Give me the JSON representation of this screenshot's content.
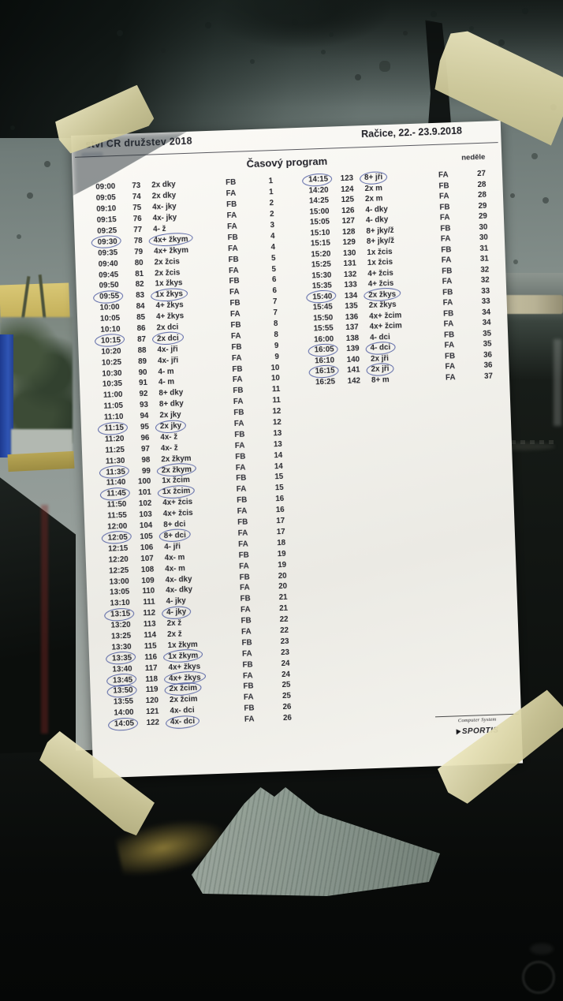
{
  "document": {
    "event_title_visible": "ství ČR družstev 2018",
    "location_date": "Račice,  22.- 23.9.2018",
    "program_title": "Časový program",
    "day_label": "neděle",
    "footer": {
      "line1": "Computer System",
      "line2": "SPORTIS"
    },
    "schedule_left": [
      {
        "time": "09:00",
        "race": "73",
        "boat": "2x dky",
        "heat": "FB",
        "block": "1"
      },
      {
        "time": "09:05",
        "race": "74",
        "boat": "2x dky",
        "heat": "FA",
        "block": "1"
      },
      {
        "time": "09:10",
        "race": "75",
        "boat": "4x- jky",
        "heat": "FB",
        "block": "2"
      },
      {
        "time": "09:15",
        "race": "76",
        "boat": "4x- jky",
        "heat": "FA",
        "block": "2"
      },
      {
        "time": "09:25",
        "race": "77",
        "boat": "4- ž",
        "heat": "FA",
        "block": "3"
      },
      {
        "time": "09:30",
        "race": "78",
        "boat": "4x+ žkym",
        "heat": "FB",
        "block": "4",
        "tc": 1,
        "bc": 1
      },
      {
        "time": "09:35",
        "race": "79",
        "boat": "4x+ žkym",
        "heat": "FA",
        "block": "4"
      },
      {
        "time": "09:40",
        "race": "80",
        "boat": "2x žcis",
        "heat": "FB",
        "block": "5"
      },
      {
        "time": "09:45",
        "race": "81",
        "boat": "2x žcis",
        "heat": "FA",
        "block": "5"
      },
      {
        "time": "09:50",
        "race": "82",
        "boat": "1x žkys",
        "heat": "FB",
        "block": "6"
      },
      {
        "time": "09:55",
        "race": "83",
        "boat": "1x žkys",
        "heat": "FA",
        "block": "6",
        "tc": 1,
        "bc": 1
      },
      {
        "time": "10:00",
        "race": "84",
        "boat": "4+ žkys",
        "heat": "FB",
        "block": "7"
      },
      {
        "time": "10:05",
        "race": "85",
        "boat": "4+ žkys",
        "heat": "FA",
        "block": "7"
      },
      {
        "time": "10:10",
        "race": "86",
        "boat": "2x dci",
        "heat": "FB",
        "block": "8"
      },
      {
        "time": "10:15",
        "race": "87",
        "boat": "2x dci",
        "heat": "FA",
        "block": "8",
        "tc": 1,
        "bc": 1
      },
      {
        "time": "10:20",
        "race": "88",
        "boat": "4x- jři",
        "heat": "FB",
        "block": "9"
      },
      {
        "time": "10:25",
        "race": "89",
        "boat": "4x- jři",
        "heat": "FA",
        "block": "9"
      },
      {
        "time": "10:30",
        "race": "90",
        "boat": "4- m",
        "heat": "FB",
        "block": "10"
      },
      {
        "time": "10:35",
        "race": "91",
        "boat": "4- m",
        "heat": "FA",
        "block": "10"
      },
      {
        "time": "11:00",
        "race": "92",
        "boat": "8+ dky",
        "heat": "FB",
        "block": "11"
      },
      {
        "time": "11:05",
        "race": "93",
        "boat": "8+ dky",
        "heat": "FA",
        "block": "11"
      },
      {
        "time": "11:10",
        "race": "94",
        "boat": "2x jky",
        "heat": "FB",
        "block": "12"
      },
      {
        "time": "11:15",
        "race": "95",
        "boat": "2x jky",
        "heat": "FA",
        "block": "12",
        "tc": 1,
        "bc": 1
      },
      {
        "time": "11:20",
        "race": "96",
        "boat": "4x- ž",
        "heat": "FB",
        "block": "13"
      },
      {
        "time": "11:25",
        "race": "97",
        "boat": "4x- ž",
        "heat": "FA",
        "block": "13"
      },
      {
        "time": "11:30",
        "race": "98",
        "boat": "2x žkym",
        "heat": "FB",
        "block": "14"
      },
      {
        "time": "11:35",
        "race": "99",
        "boat": "2x žkym",
        "heat": "FA",
        "block": "14",
        "tc": 1,
        "bc": 1
      },
      {
        "time": "11:40",
        "race": "100",
        "boat": "1x žcim",
        "heat": "FB",
        "block": "15"
      },
      {
        "time": "11:45",
        "race": "101",
        "boat": "1x žcim",
        "heat": "FA",
        "block": "15",
        "tc": 1,
        "bc": 1
      },
      {
        "time": "11:50",
        "race": "102",
        "boat": "4x+ žcis",
        "heat": "FB",
        "block": "16"
      },
      {
        "time": "11:55",
        "race": "103",
        "boat": "4x+ žcis",
        "heat": "FA",
        "block": "16"
      },
      {
        "time": "12:00",
        "race": "104",
        "boat": "8+ dci",
        "heat": "FB",
        "block": "17"
      },
      {
        "time": "12:05",
        "race": "105",
        "boat": "8+ dci",
        "heat": "FA",
        "block": "17",
        "tc": 1,
        "bc": 1
      },
      {
        "time": "12:15",
        "race": "106",
        "boat": "4- jři",
        "heat": "FA",
        "block": "18"
      },
      {
        "time": "12:20",
        "race": "107",
        "boat": "4x- m",
        "heat": "FB",
        "block": "19"
      },
      {
        "time": "12:25",
        "race": "108",
        "boat": "4x- m",
        "heat": "FA",
        "block": "19"
      },
      {
        "time": "13:00",
        "race": "109",
        "boat": "4x- dky",
        "heat": "FB",
        "block": "20"
      },
      {
        "time": "13:05",
        "race": "110",
        "boat": "4x- dky",
        "heat": "FA",
        "block": "20"
      },
      {
        "time": "13:10",
        "race": "111",
        "boat": "4- jky",
        "heat": "FB",
        "block": "21"
      },
      {
        "time": "13:15",
        "race": "112",
        "boat": "4- jky",
        "heat": "FA",
        "block": "21",
        "tc": 1,
        "bc": 1
      },
      {
        "time": "13:20",
        "race": "113",
        "boat": "2x ž",
        "heat": "FB",
        "block": "22"
      },
      {
        "time": "13:25",
        "race": "114",
        "boat": "2x ž",
        "heat": "FA",
        "block": "22"
      },
      {
        "time": "13:30",
        "race": "115",
        "boat": "1x žkym",
        "heat": "FB",
        "block": "23"
      },
      {
        "time": "13:35",
        "race": "116",
        "boat": "1x žkym",
        "heat": "FA",
        "block": "23",
        "tc": 1,
        "bc": 1
      },
      {
        "time": "13:40",
        "race": "117",
        "boat": "4x+ žkys",
        "heat": "FB",
        "block": "24"
      },
      {
        "time": "13:45",
        "race": "118",
        "boat": "4x+ žkys",
        "heat": "FA",
        "block": "24",
        "tc": 1,
        "bc": 1
      },
      {
        "time": "13:50",
        "race": "119",
        "boat": "2x žcim",
        "heat": "FB",
        "block": "25",
        "tc": 1,
        "bc": 1
      },
      {
        "time": "13:55",
        "race": "120",
        "boat": "2x žcim",
        "heat": "FA",
        "block": "25"
      },
      {
        "time": "14:00",
        "race": "121",
        "boat": "4x- dci",
        "heat": "FB",
        "block": "26"
      },
      {
        "time": "14:05",
        "race": "122",
        "boat": "4x- dci",
        "heat": "FA",
        "block": "26",
        "tc": 1,
        "bc": 1
      }
    ],
    "schedule_right": [
      {
        "time": "14:15",
        "race": "123",
        "boat": "8+ jři",
        "heat": "FA",
        "block": "27",
        "tc": 1,
        "bc": 1
      },
      {
        "time": "14:20",
        "race": "124",
        "boat": "2x m",
        "heat": "FB",
        "block": "28"
      },
      {
        "time": "14:25",
        "race": "125",
        "boat": "2x m",
        "heat": "FA",
        "block": "28"
      },
      {
        "time": "15:00",
        "race": "126",
        "boat": "4- dky",
        "heat": "FB",
        "block": "29"
      },
      {
        "time": "15:05",
        "race": "127",
        "boat": "4- dky",
        "heat": "FA",
        "block": "29"
      },
      {
        "time": "15:10",
        "race": "128",
        "boat": "8+ jky/ž",
        "heat": "FB",
        "block": "30"
      },
      {
        "time": "15:15",
        "race": "129",
        "boat": "8+ jky/ž",
        "heat": "FA",
        "block": "30"
      },
      {
        "time": "15:20",
        "race": "130",
        "boat": "1x žcis",
        "heat": "FB",
        "block": "31"
      },
      {
        "time": "15:25",
        "race": "131",
        "boat": "1x žcis",
        "heat": "FA",
        "block": "31"
      },
      {
        "time": "15:30",
        "race": "132",
        "boat": "4+ žcis",
        "heat": "FB",
        "block": "32"
      },
      {
        "time": "15:35",
        "race": "133",
        "boat": "4+ žcis",
        "heat": "FA",
        "block": "32"
      },
      {
        "time": "15:40",
        "race": "134",
        "boat": "2x žkys",
        "heat": "FB",
        "block": "33",
        "tc": 1,
        "bc": 1
      },
      {
        "time": "15:45",
        "race": "135",
        "boat": "2x žkys",
        "heat": "FA",
        "block": "33"
      },
      {
        "time": "15:50",
        "race": "136",
        "boat": "4x+ žcim",
        "heat": "FB",
        "block": "34"
      },
      {
        "time": "15:55",
        "race": "137",
        "boat": "4x+ žcim",
        "heat": "FA",
        "block": "34"
      },
      {
        "time": "16:00",
        "race": "138",
        "boat": "4- dci",
        "heat": "FB",
        "block": "35"
      },
      {
        "time": "16:05",
        "race": "139",
        "boat": "4- dci",
        "heat": "FA",
        "block": "35",
        "tc": 1,
        "bc": 1
      },
      {
        "time": "16:10",
        "race": "140",
        "boat": "2x jři",
        "heat": "FB",
        "block": "36"
      },
      {
        "time": "16:15",
        "race": "141",
        "boat": "2x jři",
        "heat": "FA",
        "block": "36",
        "tc": 1,
        "bc": 1
      },
      {
        "time": "16:25",
        "race": "142",
        "boat": "8+ m",
        "heat": "FA",
        "block": "37"
      }
    ]
  },
  "scene": {
    "tape_color": "#e7e2bd",
    "ink_circle_color": "#2c3c91",
    "paper_color": "#f5f4ef"
  }
}
